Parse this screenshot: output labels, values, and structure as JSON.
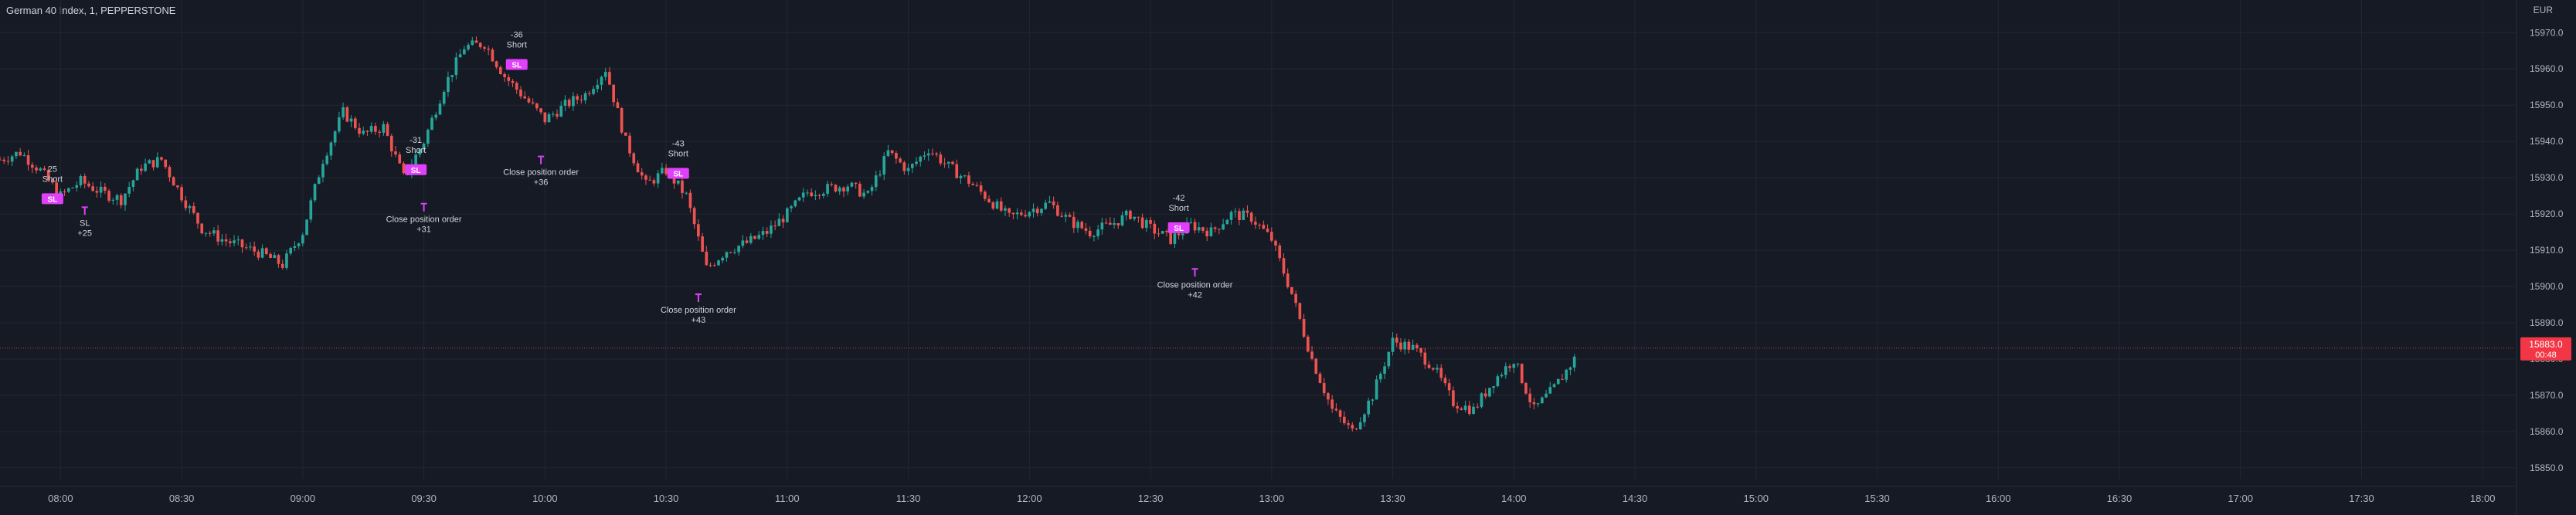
{
  "header": {
    "title": "German 40 Index, 1, PEPPERSTONE",
    "currency": "EUR"
  },
  "colors": {
    "background": "#161a25",
    "up": "#26a69a",
    "down": "#ef5350",
    "grid": "#232733",
    "axis_text": "#b2b5be",
    "marker": "#e040fb",
    "price_line": "#f23645"
  },
  "price_badge": {
    "price": "15883.0",
    "countdown": "00:48"
  },
  "chart_data": {
    "type": "candlestick",
    "title": "German 40 Index, 1, PEPPERSTONE",
    "y_axis": {
      "label": "EUR",
      "ticks": [
        15970,
        15960,
        15950,
        15940,
        15930,
        15920,
        15910,
        15900,
        15890,
        15880,
        15870,
        15860,
        15850
      ],
      "tick_labels": [
        "15970.0",
        "15960.0",
        "15950.0",
        "15940.0",
        "15930.0",
        "15920.0",
        "15910.0",
        "15900.0",
        "15890.0",
        "15880.0",
        "15870.0",
        "15860.0",
        "15850.0"
      ],
      "range": [
        15847,
        15979
      ]
    },
    "x_axis": {
      "ticks": [
        "08:00",
        "08:30",
        "09:00",
        "09:30",
        "10:00",
        "10:30",
        "11:00",
        "11:30",
        "12:00",
        "12:30",
        "13:00",
        "13:30",
        "14:00",
        "14:30",
        "15:00",
        "15:30",
        "16:00",
        "16:30",
        "17:00",
        "17:30",
        "18:00"
      ],
      "range": [
        "07:45",
        "18:08"
      ]
    },
    "last_price": 15883.0,
    "path": [
      [
        "07:45",
        15935
      ],
      [
        "07:50",
        15937
      ],
      [
        "07:55",
        15932
      ],
      [
        "08:00",
        15925
      ],
      [
        "08:05",
        15929
      ],
      [
        "08:10",
        15926
      ],
      [
        "08:15",
        15924
      ],
      [
        "08:20",
        15933
      ],
      [
        "08:25",
        15935
      ],
      [
        "08:30",
        15925
      ],
      [
        "08:35",
        15916
      ],
      [
        "08:40",
        15913
      ],
      [
        "08:45",
        15911
      ],
      [
        "08:50",
        15909
      ],
      [
        "08:55",
        15906
      ],
      [
        "09:00",
        15915
      ],
      [
        "09:05",
        15935
      ],
      [
        "09:10",
        15948
      ],
      [
        "09:15",
        15942
      ],
      [
        "09:20",
        15944
      ],
      [
        "09:25",
        15930
      ],
      [
        "09:30",
        15940
      ],
      [
        "09:35",
        15955
      ],
      [
        "09:40",
        15966
      ],
      [
        "09:45",
        15967
      ],
      [
        "09:50",
        15958
      ],
      [
        "09:55",
        15952
      ],
      [
        "10:00",
        15946
      ],
      [
        "10:05",
        15950
      ],
      [
        "10:10",
        15953
      ],
      [
        "10:15",
        15960
      ],
      [
        "10:20",
        15940
      ],
      [
        "10:25",
        15928
      ],
      [
        "10:30",
        15932
      ],
      [
        "10:35",
        15925
      ],
      [
        "10:40",
        15905
      ],
      [
        "10:45",
        15910
      ],
      [
        "10:50",
        15912
      ],
      [
        "10:55",
        15915
      ],
      [
        "11:00",
        15920
      ],
      [
        "11:05",
        15926
      ],
      [
        "11:10",
        15927
      ],
      [
        "11:15",
        15928
      ],
      [
        "11:20",
        15925
      ],
      [
        "11:25",
        15937
      ],
      [
        "11:30",
        15932
      ],
      [
        "11:35",
        15938
      ],
      [
        "11:40",
        15933
      ],
      [
        "11:45",
        15929
      ],
      [
        "11:50",
        15924
      ],
      [
        "11:55",
        15919
      ],
      [
        "12:00",
        15921
      ],
      [
        "12:05",
        15923
      ],
      [
        "12:10",
        15918
      ],
      [
        "12:15",
        15915
      ],
      [
        "12:20",
        15917
      ],
      [
        "12:25",
        15920
      ],
      [
        "12:30",
        15916
      ],
      [
        "12:35",
        15913
      ],
      [
        "12:40",
        15917
      ],
      [
        "12:45",
        15915
      ],
      [
        "12:50",
        15920
      ],
      [
        "12:55",
        15919
      ],
      [
        "13:00",
        15913
      ],
      [
        "13:05",
        15898
      ],
      [
        "13:10",
        15880
      ],
      [
        "13:15",
        15866
      ],
      [
        "13:20",
        15860
      ],
      [
        "13:25",
        15870
      ],
      [
        "13:30",
        15885
      ],
      [
        "13:35",
        15883
      ],
      [
        "13:40",
        15878
      ],
      [
        "13:45",
        15868
      ],
      [
        "13:50",
        15866
      ],
      [
        "13:55",
        15874
      ],
      [
        "14:00",
        15880
      ],
      [
        "14:05",
        15866
      ],
      [
        "14:10",
        15872
      ],
      [
        "14:15",
        15880
      ]
    ],
    "trade_markers": [
      {
        "label_top": "25",
        "label_mid": "Short",
        "time": "07:58",
        "price": 15924,
        "badge": "SL",
        "flag": "SL",
        "close_label": "SL",
        "close_pnl": "+25",
        "close_time": "08:06",
        "close_price": 15921
      },
      {
        "label_top": "-31",
        "label_mid": "Short",
        "time": "09:28",
        "price": 15932,
        "badge": "SL",
        "close_label": "Close position order",
        "close_pnl": "+31",
        "close_time": "09:30",
        "close_price": 15922
      },
      {
        "label_top": "-36",
        "label_mid": "Short",
        "time": "09:53",
        "price": 15961,
        "badge": "SL",
        "close_label": "Close position order",
        "close_pnl": "+36",
        "close_time": "09:59",
        "close_price": 15935
      },
      {
        "label_top": "-43",
        "label_mid": "Short",
        "time": "10:33",
        "price": 15931,
        "badge": "SL",
        "close_label": "Close position order",
        "close_pnl": "+43",
        "close_time": "10:38",
        "close_price": 15897
      },
      {
        "label_top": "-42",
        "label_mid": "Short",
        "time": "12:37",
        "price": 15916,
        "badge": "SL",
        "close_label": "Close position order",
        "close_pnl": "+42",
        "close_time": "12:41",
        "close_price": 15904
      }
    ]
  }
}
